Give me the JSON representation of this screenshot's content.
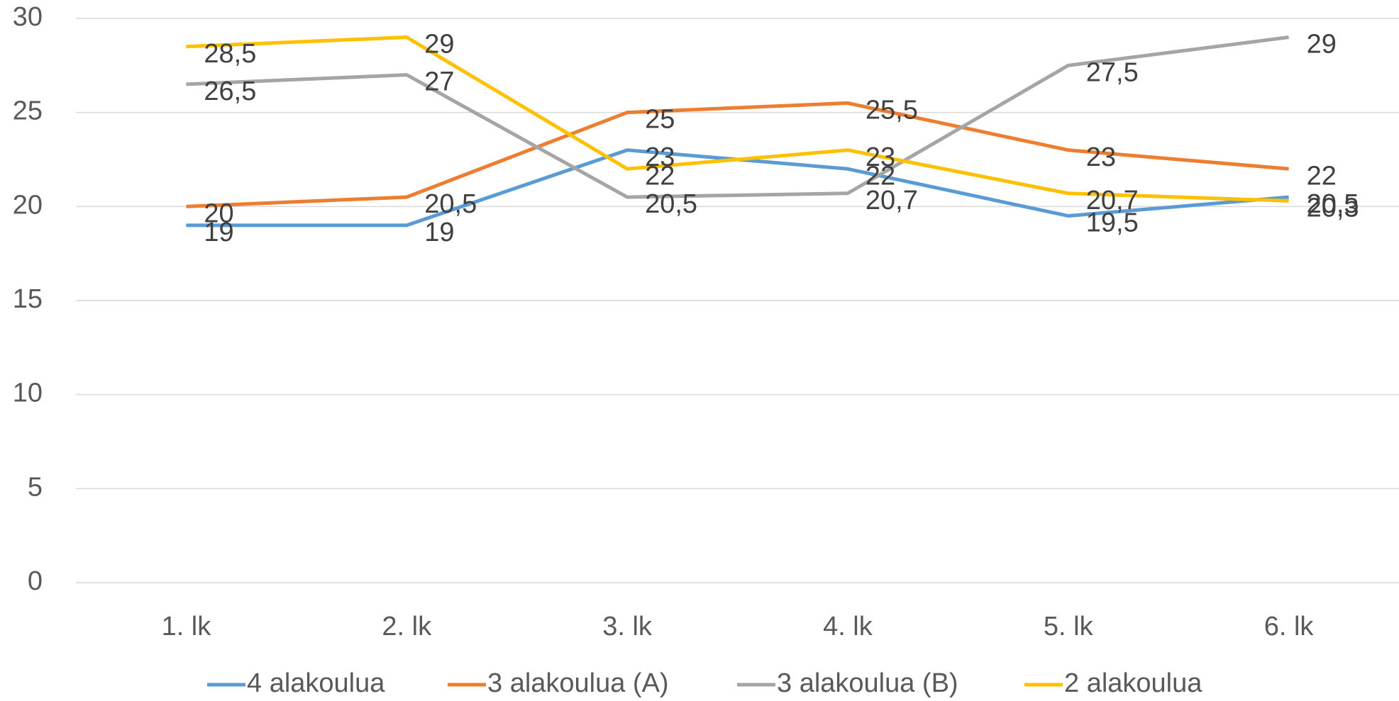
{
  "chart_data": {
    "type": "line",
    "categories": [
      "1. lk",
      "2. lk",
      "3. lk",
      "4. lk",
      "5. lk",
      "6. lk"
    ],
    "series": [
      {
        "name": "4 alakoulua",
        "color": "#5b9bd5",
        "values": [
          19,
          19,
          23,
          22,
          19.5,
          20.5
        ],
        "value_labels": [
          "19",
          "19",
          "23",
          "22",
          "19,5",
          "20,5"
        ]
      },
      {
        "name": "3 alakoulua (A)",
        "color": "#ed7d31",
        "values": [
          20,
          20.5,
          25,
          25.5,
          23,
          22
        ],
        "value_labels": [
          "20",
          "20,5",
          "25",
          "25,5",
          "23",
          "22"
        ]
      },
      {
        "name": "3 alakoulua (B)",
        "color": "#a5a5a5",
        "values": [
          26.5,
          27,
          20.5,
          20.7,
          27.5,
          29
        ],
        "value_labels": [
          "26,5",
          "27",
          "20,5",
          "20,7",
          "27,5",
          "29"
        ]
      },
      {
        "name": "2 alakoulua",
        "color": "#ffc000",
        "values": [
          28.5,
          29,
          22,
          23,
          20.7,
          20.3
        ],
        "value_labels": [
          "28,5",
          "29",
          "22",
          "23",
          "20,7",
          "20,3"
        ]
      }
    ],
    "ylim": [
      0,
      30
    ],
    "yticks": [
      0,
      5,
      10,
      15,
      20,
      25,
      30
    ],
    "grid": true,
    "legend": "bottom"
  }
}
